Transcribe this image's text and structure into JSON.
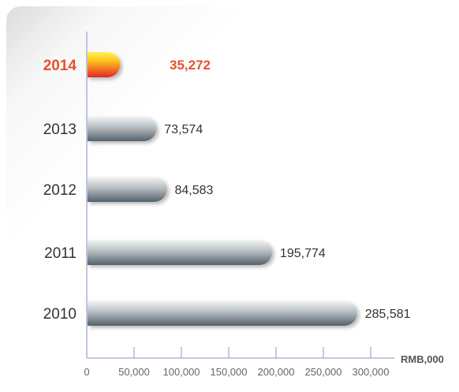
{
  "chart_data": {
    "type": "bar",
    "orientation": "horizontal",
    "categories": [
      "2014",
      "2013",
      "2012",
      "2011",
      "2010"
    ],
    "values": [
      35272,
      73574,
      84583,
      195774,
      285581
    ],
    "value_labels": [
      "35,272",
      "73,574",
      "84,583",
      "195,774",
      "285,581"
    ],
    "highlight_category": "2014",
    "xticks": [
      0,
      50000,
      100000,
      150000,
      200000,
      250000,
      300000
    ],
    "xtick_labels": [
      "0",
      "50,000",
      "100,000",
      "150,000",
      "200,000",
      "250,000",
      "300,000"
    ],
    "xlim": [
      0,
      310000
    ],
    "xlabel": "RMB,000",
    "grid": false,
    "colors": {
      "bar_gray_light": "#f2f4f5",
      "bar_gray_dark": "#55626b",
      "highlight_top": "#ffe11a",
      "highlight_bottom": "#e2262c",
      "highlight_text": "#e8502d"
    }
  }
}
